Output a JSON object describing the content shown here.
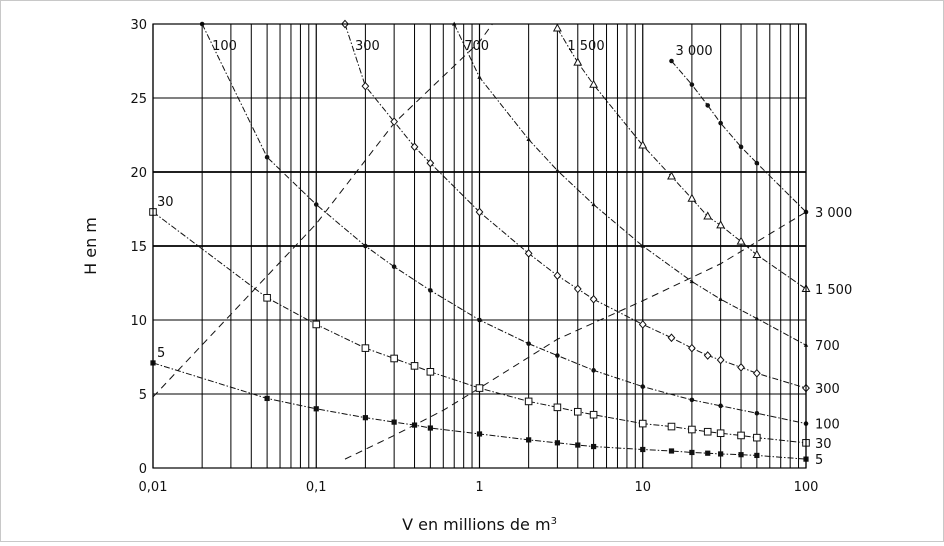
{
  "chart_data": {
    "type": "line",
    "x_scale": "log",
    "xlim": [
      0.01,
      100
    ],
    "ylim": [
      0,
      30
    ],
    "grid": true,
    "xlabel": "V en millions de m",
    "xlabel_superscript": "3",
    "ylabel": "H en m",
    "xticks": [
      {
        "v": 0.01,
        "label": "0,01"
      },
      {
        "v": 0.1,
        "label": "0,1"
      },
      {
        "v": 1,
        "label": "1"
      },
      {
        "v": 10,
        "label": "10"
      },
      {
        "v": 100,
        "label": "100"
      }
    ],
    "yticks": [
      {
        "v": 0,
        "label": "0"
      },
      {
        "v": 5,
        "label": "5"
      },
      {
        "v": 10,
        "label": "10"
      },
      {
        "v": 15,
        "label": "15"
      },
      {
        "v": 20,
        "label": "20"
      },
      {
        "v": 25,
        "label": "25"
      },
      {
        "v": 30,
        "label": "30"
      }
    ],
    "series": [
      {
        "name": "5",
        "marker": "filled-square",
        "dash": "dashdot",
        "label_left": "5",
        "label_right": "5",
        "x": [
          0.01,
          0.05,
          0.1,
          0.2,
          0.3,
          0.4,
          0.5,
          1,
          2,
          3,
          4,
          5,
          10,
          15,
          20,
          25,
          30,
          40,
          50,
          100
        ],
        "y": [
          7.1,
          4.7,
          4.0,
          3.4,
          3.1,
          2.9,
          2.7,
          2.3,
          1.9,
          1.7,
          1.55,
          1.45,
          1.25,
          1.15,
          1.05,
          1.0,
          0.95,
          0.9,
          0.85,
          0.6
        ]
      },
      {
        "name": "30",
        "marker": "open-square",
        "dash": "dashdot",
        "label_left": "30",
        "label_right": "30",
        "x": [
          0.01,
          0.05,
          0.1,
          0.2,
          0.3,
          0.4,
          0.5,
          1,
          2,
          3,
          4,
          5,
          10,
          15,
          20,
          25,
          30,
          40,
          50,
          100
        ],
        "y": [
          17.3,
          11.5,
          9.7,
          8.1,
          7.4,
          6.9,
          6.5,
          5.4,
          4.5,
          4.1,
          3.8,
          3.6,
          3.0,
          2.8,
          2.6,
          2.45,
          2.35,
          2.2,
          2.05,
          1.7
        ]
      },
      {
        "name": "100",
        "marker": "filled-dot",
        "dash": "dashdot",
        "label_left": "100",
        "label_right": "100",
        "x": [
          0.02,
          0.05,
          0.1,
          0.2,
          0.3,
          0.5,
          1,
          2,
          3,
          5,
          10,
          20,
          30,
          50,
          100
        ],
        "y": [
          30.0,
          21.0,
          17.8,
          15.0,
          13.6,
          12.0,
          10.0,
          8.4,
          7.6,
          6.6,
          5.5,
          4.6,
          4.2,
          3.7,
          3.0
        ]
      },
      {
        "name": "300",
        "marker": "open-diamond",
        "dash": "dashdot",
        "label_left": "300",
        "label_right": "300",
        "x": [
          0.15,
          0.2,
          0.3,
          0.4,
          0.5,
          1,
          2,
          3,
          4,
          5,
          10,
          15,
          20,
          25,
          30,
          40,
          50,
          100
        ],
        "y": [
          30.0,
          25.8,
          23.4,
          21.7,
          20.6,
          17.3,
          14.5,
          13.0,
          12.1,
          11.4,
          9.7,
          8.8,
          8.1,
          7.6,
          7.3,
          6.8,
          6.4,
          5.4
        ]
      },
      {
        "name": "700",
        "marker": "filled-triangle",
        "dash": "dashdot",
        "label_left": "700",
        "label_right": "700",
        "x": [
          0.7,
          1,
          2,
          3,
          5,
          10,
          20,
          30,
          50,
          100
        ],
        "y": [
          30.0,
          26.4,
          22.2,
          20.1,
          17.8,
          15.0,
          12.6,
          11.4,
          10.1,
          8.3
        ]
      },
      {
        "name": "1 500",
        "marker": "open-triangle",
        "dash": "dashdot",
        "label_left": "1 500",
        "label_right": "1 500",
        "x": [
          3,
          4,
          5,
          10,
          15,
          20,
          25,
          30,
          40,
          50,
          100
        ],
        "y": [
          29.7,
          27.4,
          25.9,
          21.8,
          19.7,
          18.2,
          17.0,
          16.4,
          15.3,
          14.4,
          12.1
        ]
      },
      {
        "name": "3 000",
        "marker": "filled-dot",
        "dash": "dashdot",
        "label_left": "3 000",
        "label_right": "3 000",
        "x": [
          15,
          20,
          25,
          30,
          40,
          50,
          100
        ],
        "y": [
          27.5,
          25.9,
          24.5,
          23.3,
          21.7,
          20.6,
          17.3
        ]
      },
      {
        "name": "",
        "marker": "none",
        "dash": "dashed",
        "x": [
          0.01,
          0.1,
          0.3,
          1,
          1.2
        ],
        "y": [
          4.8,
          16.5,
          23.3,
          28.8,
          30.0
        ]
      },
      {
        "name": "",
        "marker": "none",
        "dash": "dashed",
        "x": [
          0.15,
          0.3,
          0.6,
          1,
          3,
          10,
          30,
          100
        ],
        "y": [
          0.6,
          2.2,
          3.9,
          5.4,
          8.7,
          11.3,
          13.8,
          17.3
        ]
      }
    ]
  }
}
